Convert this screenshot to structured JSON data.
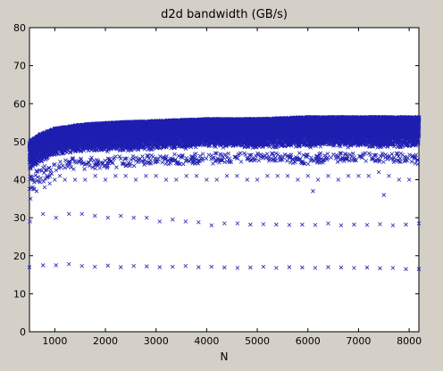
{
  "chart_data": {
    "type": "scatter",
    "title": "d2d bandwidth (GB/s)",
    "xlabel": "N",
    "ylabel": "",
    "xlim": [
      500,
      8192
    ],
    "ylim": [
      0,
      80
    ],
    "xticks": [
      1000,
      2000,
      3000,
      4000,
      5000,
      6000,
      7000,
      8000
    ],
    "yticks": [
      0,
      10,
      20,
      30,
      40,
      50,
      60,
      70,
      80
    ],
    "grid": false,
    "marker": "x",
    "marker_color": "#1f1fb0",
    "series": [
      {
        "name": "",
        "x": [
          500,
          768,
          1024,
          1280,
          1536,
          1792,
          2048,
          2304,
          2560,
          2816,
          3072,
          3328,
          3584,
          3840,
          4096,
          4352,
          4608,
          4864,
          5120,
          5376,
          5632,
          5888,
          6144,
          6400,
          6656,
          6912,
          7168,
          7424,
          7680,
          7936,
          8192
        ],
        "y": [
          17,
          17.5,
          17.5,
          17.8,
          17.3,
          17.1,
          17.4,
          17.0,
          17.3,
          17.2,
          17.0,
          17.1,
          17.3,
          17.0,
          17.1,
          16.9,
          16.8,
          16.9,
          17.1,
          16.8,
          17.0,
          16.9,
          16.8,
          17.0,
          16.9,
          16.8,
          16.9,
          16.7,
          16.8,
          16.5,
          16.5
        ]
      },
      {
        "name": "",
        "x": [
          512,
          768,
          1024,
          1280,
          1536,
          1792,
          2048,
          2304,
          2560,
          2816,
          3072,
          3328,
          3584,
          3840,
          4096,
          4352,
          4608,
          4864,
          5120,
          5376,
          5632,
          5888,
          6144,
          6400,
          6656,
          6912,
          7168,
          7424,
          7680,
          7936,
          8192
        ],
        "y": [
          29,
          31,
          30,
          31,
          31,
          30.5,
          30,
          30.5,
          30,
          30,
          29,
          29.5,
          29,
          28.8,
          28,
          28.5,
          28.5,
          28.2,
          28.3,
          28.2,
          28.1,
          28.2,
          28.1,
          28.5,
          28.0,
          28.2,
          28.1,
          28.3,
          28.0,
          28.2,
          28.5
        ]
      },
      {
        "name": "",
        "x": [
          520,
          640,
          800,
          900,
          1000,
          1100,
          1200,
          1400,
          1600,
          1800,
          2000,
          2200,
          2400,
          2600,
          2800,
          3000,
          3200,
          3400,
          3600,
          3800,
          4000,
          4200,
          4400,
          4600,
          4800,
          5000,
          5200,
          5400,
          5600,
          5800,
          6000,
          6100,
          6200,
          6400,
          6600,
          6800,
          7000,
          7200,
          7400,
          7500,
          7600,
          7800,
          8000
        ],
        "y": [
          35,
          37,
          38,
          39,
          40,
          41,
          40,
          40,
          40,
          41,
          40,
          41,
          41,
          40,
          41,
          41,
          40,
          40,
          41,
          41,
          40,
          40,
          41,
          41,
          40,
          40,
          41,
          41,
          41,
          40,
          41,
          37,
          40,
          41,
          40,
          41,
          41,
          41,
          42,
          36,
          41,
          40,
          40
        ]
      }
    ],
    "dense_band": {
      "description_range_y": [
        40,
        57
      ],
      "lower_edge": [
        [
          500,
          41
        ],
        [
          700,
          43
        ],
        [
          1000,
          45
        ],
        [
          1500,
          46
        ],
        [
          2000,
          46
        ],
        [
          3000,
          46.5
        ],
        [
          4000,
          47
        ],
        [
          5000,
          47
        ],
        [
          6000,
          47
        ],
        [
          7000,
          47
        ],
        [
          8192,
          47
        ]
      ],
      "upper_edge": [
        [
          500,
          50
        ],
        [
          700,
          52
        ],
        [
          1000,
          53.5
        ],
        [
          1500,
          54.5
        ],
        [
          2000,
          55
        ],
        [
          3000,
          55.5
        ],
        [
          4000,
          56
        ],
        [
          5000,
          56
        ],
        [
          6000,
          56.5
        ],
        [
          7000,
          56.5
        ],
        [
          8192,
          56.5
        ]
      ],
      "scatter_low": [
        [
          500,
          36
        ],
        [
          1000,
          42
        ],
        [
          2000,
          43
        ],
        [
          3000,
          44
        ],
        [
          4000,
          44
        ],
        [
          5000,
          45
        ],
        [
          6000,
          44
        ],
        [
          7000,
          45
        ],
        [
          8192,
          44
        ]
      ]
    }
  }
}
